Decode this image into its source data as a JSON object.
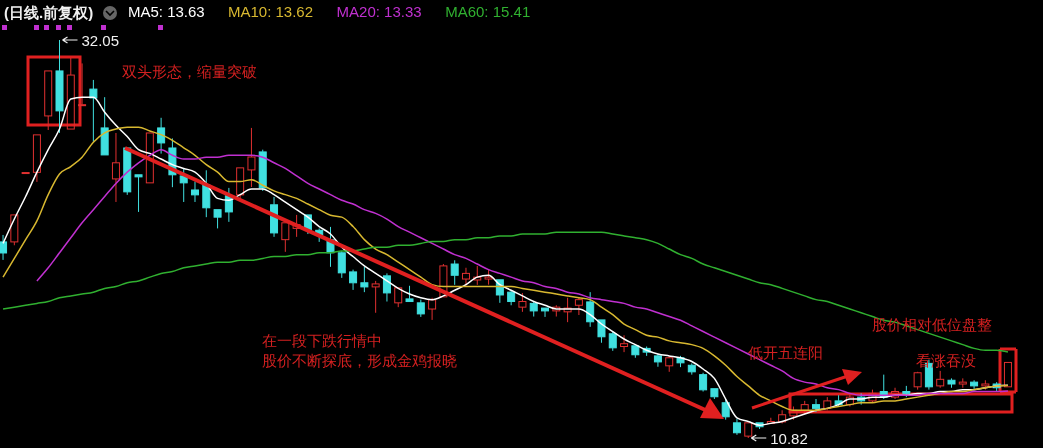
{
  "chart_data": {
    "type": "candlestick",
    "title": "(日线.前复权)",
    "tick_labels": false,
    "legend": "top left",
    "categories": [
      null,
      null,
      null,
      null,
      null,
      null,
      null,
      null,
      null,
      null,
      null,
      null,
      null,
      null,
      null,
      null,
      null,
      null,
      null,
      null,
      null,
      null,
      null,
      null,
      null,
      null,
      null,
      null,
      null,
      null,
      null,
      null,
      null,
      null,
      null,
      null,
      null,
      null,
      null,
      null,
      null,
      null,
      null,
      null,
      null,
      null,
      null,
      null,
      null,
      null,
      null,
      null,
      null,
      null,
      null,
      null,
      null,
      null,
      null,
      null,
      null,
      null,
      null,
      null,
      null,
      null,
      null,
      null,
      null,
      null,
      null,
      null,
      null,
      null,
      null,
      null,
      null,
      null,
      null,
      null,
      null,
      null,
      null,
      null,
      null,
      null,
      null,
      null,
      null,
      null
    ],
    "ohlc": [
      [
        21.28,
        21.65,
        20.32,
        20.69
      ],
      [
        21.28,
        22.72,
        21.1,
        22.72
      ],
      [
        24.95,
        24.98,
        24.95,
        24.98
      ],
      [
        24.99,
        26.99,
        24.48,
        26.99
      ],
      [
        28.0,
        30.4,
        27.25,
        30.4
      ],
      [
        30.4,
        32.05,
        27.1,
        28.27
      ],
      [
        27.3,
        31.09,
        27.3,
        30.18
      ],
      [
        28.6,
        30.8,
        28.6,
        28.6
      ],
      [
        29.43,
        29.92,
        26.62,
        28.96
      ],
      [
        27.36,
        29.0,
        25.92,
        25.92
      ],
      [
        24.64,
        27.09,
        23.41,
        25.5
      ],
      [
        26.29,
        26.29,
        23.79,
        23.95
      ],
      [
        24.86,
        24.86,
        22.88,
        24.75
      ],
      [
        24.43,
        27.09,
        24.43,
        27.09
      ],
      [
        27.36,
        27.9,
        25.99,
        26.56
      ],
      [
        26.29,
        26.8,
        24.2,
        24.86
      ],
      [
        24.8,
        25.2,
        23.41,
        24.43
      ],
      [
        24.05,
        24.5,
        23.41,
        23.79
      ],
      [
        24.32,
        25.1,
        22.6,
        23.1
      ],
      [
        23.0,
        23.0,
        22.0,
        22.6
      ],
      [
        23.74,
        24.16,
        22.35,
        22.88
      ],
      [
        23.79,
        25.23,
        23.5,
        25.23
      ],
      [
        25.12,
        27.36,
        24.21,
        25.81
      ],
      [
        26.08,
        26.2,
        24.0,
        24.16
      ],
      [
        23.26,
        23.68,
        21.55,
        21.76
      ],
      [
        21.4,
        22.3,
        20.75,
        22.3
      ],
      [
        22.0,
        22.72,
        21.55,
        22.2
      ],
      [
        22.72,
        22.72,
        21.7,
        21.92
      ],
      [
        21.9,
        22.0,
        21.28,
        21.65
      ],
      [
        21.39,
        22.08,
        19.95,
        20.7
      ],
      [
        20.7,
        20.8,
        19.36,
        19.63
      ],
      [
        19.68,
        19.8,
        18.72,
        19.1
      ],
      [
        19.1,
        19.95,
        18.6,
        18.88
      ],
      [
        18.88,
        19.2,
        17.5,
        19.04
      ],
      [
        19.47,
        19.6,
        18.1,
        18.56
      ],
      [
        18.03,
        18.83,
        17.8,
        18.83
      ],
      [
        18.24,
        18.94,
        18.1,
        18.1
      ],
      [
        18.03,
        18.2,
        17.28,
        17.44
      ],
      [
        17.7,
        18.3,
        17.12,
        18.19
      ],
      [
        18.35,
        20.1,
        18.35,
        20.0
      ],
      [
        20.1,
        20.3,
        18.99,
        19.5
      ],
      [
        19.3,
        19.9,
        18.95,
        19.6
      ],
      [
        19.25,
        20.0,
        18.99,
        19.4
      ],
      [
        19.3,
        19.8,
        19.0,
        19.4
      ],
      [
        19.26,
        19.26,
        18.03,
        18.45
      ],
      [
        18.6,
        18.7,
        17.9,
        18.1
      ],
      [
        17.8,
        18.55,
        17.55,
        18.1
      ],
      [
        18.0,
        18.1,
        17.3,
        17.6
      ],
      [
        17.75,
        17.75,
        17.28,
        17.6
      ],
      [
        17.6,
        17.9,
        17.3,
        17.8
      ],
      [
        17.55,
        18.3,
        17.0,
        17.75
      ],
      [
        17.9,
        18.3,
        17.38,
        18.2
      ],
      [
        18.08,
        18.6,
        16.75,
        17.02
      ],
      [
        17.12,
        17.12,
        15.9,
        16.22
      ],
      [
        16.38,
        16.5,
        15.47,
        15.63
      ],
      [
        15.7,
        16.3,
        15.4,
        15.85
      ],
      [
        15.74,
        15.74,
        15.1,
        15.26
      ],
      [
        15.6,
        15.7,
        15.2,
        15.4
      ],
      [
        15.2,
        15.3,
        14.62,
        14.88
      ],
      [
        14.67,
        15.2,
        14.35,
        15.1
      ],
      [
        15.1,
        15.2,
        14.6,
        14.83
      ],
      [
        14.7,
        14.8,
        14.2,
        14.35
      ],
      [
        14.2,
        14.3,
        13.3,
        13.39
      ],
      [
        13.45,
        13.45,
        12.9,
        13.02
      ],
      [
        12.7,
        12.9,
        11.8,
        11.95
      ],
      [
        11.63,
        11.85,
        10.99,
        11.1
      ],
      [
        10.92,
        11.63,
        10.82,
        11.63
      ],
      [
        11.63,
        11.63,
        11.3,
        11.42
      ],
      [
        11.6,
        11.9,
        11.6,
        11.7
      ],
      [
        11.68,
        12.3,
        11.6,
        12.06
      ],
      [
        12.0,
        12.5,
        11.8,
        12.3
      ],
      [
        12.3,
        12.8,
        12.1,
        12.6
      ],
      [
        12.6,
        12.9,
        12.2,
        12.4
      ],
      [
        12.4,
        13.0,
        12.3,
        12.8
      ],
      [
        12.8,
        13.1,
        12.5,
        12.6
      ],
      [
        12.6,
        13.2,
        12.5,
        13.0
      ],
      [
        13.0,
        13.2,
        12.6,
        12.8
      ],
      [
        12.8,
        13.4,
        12.7,
        13.2
      ],
      [
        13.3,
        14.2,
        12.9,
        13.0
      ],
      [
        13.0,
        13.5,
        12.9,
        13.3
      ],
      [
        13.3,
        13.6,
        13.0,
        13.2
      ],
      [
        13.55,
        14.35,
        13.4,
        14.3
      ],
      [
        14.8,
        15.0,
        13.4,
        13.55
      ],
      [
        13.6,
        14.4,
        13.5,
        13.95
      ],
      [
        13.9,
        14.0,
        13.5,
        13.7
      ],
      [
        13.7,
        14.0,
        13.5,
        13.8
      ],
      [
        13.8,
        13.9,
        13.4,
        13.6
      ],
      [
        13.6,
        13.9,
        13.4,
        13.7
      ],
      [
        13.7,
        13.8,
        13.3,
        13.5
      ],
      [
        13.55,
        14.85,
        13.55,
        14.85
      ]
    ],
    "series": [
      {
        "type": "line",
        "name": "MA5: 13.63",
        "color": "#ffffff",
        "values": [
          21.2,
          22.5,
          23.7,
          25.0,
          26.2,
          27.3,
          28.9,
          29.0,
          29.0,
          28.2,
          27.5,
          26.9,
          26.2,
          26.0,
          25.7,
          25.4,
          25.2,
          25.0,
          24.4,
          23.6,
          23.5,
          23.8,
          24.1,
          24.1,
          23.8,
          23.4,
          23.0,
          22.6,
          22.1,
          21.7,
          21.0,
          20.5,
          20.0,
          19.6,
          19.2,
          18.8,
          18.5,
          18.3,
          18.2,
          18.4,
          18.7,
          19.0,
          19.4,
          19.5,
          19.0,
          18.7,
          18.4,
          18.1,
          17.9,
          17.7,
          17.7,
          17.7,
          17.4,
          16.9,
          16.5,
          16.1,
          15.8,
          15.5,
          15.3,
          15.2,
          15.1,
          14.9,
          14.5,
          14.0,
          12.9,
          11.9,
          11.7,
          11.5,
          11.6,
          11.7,
          11.9,
          12.1,
          12.3,
          12.4,
          12.6,
          12.9,
          12.9,
          13.0,
          13.0,
          13.1,
          13.1,
          13.2,
          13.2,
          13.3,
          13.3,
          13.4,
          13.4,
          13.5,
          13.6,
          13.63
        ]
      },
      {
        "type": "line",
        "name": "MA10: 13.62",
        "color": "#d8b830",
        "values": [
          19.4,
          20.4,
          21.4,
          22.4,
          23.8,
          24.9,
          25.3,
          25.8,
          26.6,
          27.1,
          27.3,
          27.4,
          27.4,
          27.2,
          27.0,
          26.7,
          26.3,
          25.9,
          25.4,
          25.0,
          24.5,
          24.5,
          24.6,
          24.3,
          24.0,
          23.8,
          23.6,
          23.3,
          23.0,
          22.7,
          22.6,
          22.1,
          21.4,
          20.9,
          20.6,
          20.2,
          19.8,
          19.4,
          19.0,
          18.9,
          18.9,
          18.9,
          18.9,
          18.9,
          18.9,
          18.9,
          18.8,
          18.7,
          18.6,
          18.5,
          18.4,
          18.3,
          18.2,
          17.8,
          17.4,
          16.9,
          16.6,
          16.3,
          16.2,
          16.0,
          15.9,
          15.8,
          15.6,
          15.2,
          14.7,
          14.1,
          13.6,
          13.1,
          12.8,
          12.5,
          12.3,
          12.3,
          12.3,
          12.4,
          12.5,
          12.6,
          12.7,
          12.7,
          12.8,
          12.8,
          12.9,
          13.0,
          13.1,
          13.2,
          13.3,
          13.3,
          13.4,
          13.5,
          13.6,
          13.62
        ]
      },
      {
        "type": "line",
        "name": "MA20: 13.33",
        "color": "#c030d0",
        "values": [
          null,
          null,
          null,
          19.2,
          19.9,
          20.7,
          21.5,
          22.3,
          23.0,
          23.7,
          24.4,
          25.0,
          25.5,
          25.9,
          26.2,
          25.9,
          25.7,
          25.7,
          25.8,
          25.8,
          25.9,
          25.9,
          25.9,
          25.8,
          25.5,
          25.2,
          24.8,
          24.4,
          24.1,
          23.8,
          23.5,
          23.3,
          23.0,
          22.8,
          22.5,
          22.1,
          21.8,
          21.5,
          21.2,
          20.9,
          20.6,
          20.4,
          20.1,
          19.8,
          19.6,
          19.4,
          19.2,
          19.1,
          18.9,
          18.8,
          18.6,
          18.5,
          18.3,
          18.2,
          18.1,
          18.0,
          17.8,
          17.7,
          17.5,
          17.3,
          17.1,
          16.8,
          16.5,
          16.2,
          15.9,
          15.6,
          15.3,
          15.0,
          14.7,
          14.4,
          14.0,
          13.8,
          13.7,
          13.5,
          13.4,
          13.2,
          13.1,
          13.1,
          13.1,
          13.1,
          13.1,
          13.1,
          13.2,
          13.2,
          13.2,
          13.2,
          13.3,
          13.3,
          13.3,
          13.33
        ]
      },
      {
        "type": "line",
        "name": "MA60: 15.41",
        "color": "#30b030",
        "values": [
          17.7,
          17.8,
          17.9,
          18.0,
          18.1,
          18.3,
          18.4,
          18.5,
          18.6,
          18.8,
          18.9,
          19.1,
          19.2,
          19.4,
          19.6,
          19.7,
          19.9,
          20.0,
          20.1,
          20.2,
          20.2,
          20.3,
          20.3,
          20.4,
          20.5,
          20.5,
          20.6,
          20.6,
          20.7,
          20.7,
          20.8,
          20.8,
          20.9,
          21.0,
          21.0,
          21.1,
          21.1,
          21.2,
          21.3,
          21.3,
          21.4,
          21.4,
          21.5,
          21.5,
          21.6,
          21.6,
          21.7,
          21.7,
          21.7,
          21.8,
          21.8,
          21.8,
          21.8,
          21.8,
          21.7,
          21.6,
          21.5,
          21.4,
          21.2,
          20.9,
          20.6,
          20.4,
          20.1,
          19.9,
          19.7,
          19.5,
          19.3,
          19.1,
          19.0,
          18.8,
          18.6,
          18.4,
          18.2,
          18.1,
          17.9,
          17.7,
          17.5,
          17.3,
          17.1,
          17.0,
          16.8,
          16.6,
          16.4,
          16.2,
          16.0,
          15.8,
          15.6,
          15.5,
          15.5,
          15.41
        ]
      }
    ],
    "annotations": [
      "32.05",
      "10.82",
      "双头形态，缩量突破",
      "在一段下跌行情中",
      "股价不断探底，形成金鸡报晓",
      "低开五连阳",
      "股价相对低位盘整",
      "看涨吞没"
    ]
  }
}
